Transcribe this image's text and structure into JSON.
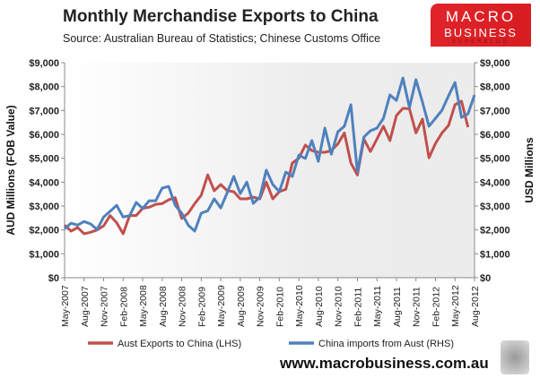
{
  "logo": {
    "line1": "MACRO",
    "line2": "BUSINESS",
    "line3": "SUPERBLOG"
  },
  "website": "www.macrobusiness.com.au",
  "chart_data": {
    "type": "line",
    "title": "Monthly Merchandise Exports to China",
    "subtitle": "Source:  Australian Bureau of Statistics; Chinese Customs Office",
    "ylabel_left": "AUD Millions (FOB Value)",
    "ylabel_right": "USD Millions",
    "ylim": [
      0,
      9000
    ],
    "yticks": [
      "$0",
      "$1,000",
      "$2,000",
      "$3,000",
      "$4,000",
      "$5,000",
      "$6,000",
      "$7,000",
      "$8,000",
      "$9,000"
    ],
    "start_month": "May-2007",
    "xtick_labels": [
      "May-2007",
      "Aug-2007",
      "Nov-2007",
      "Feb-2008",
      "May-2008",
      "Aug-2008",
      "Nov-2008",
      "Feb-2009",
      "May-2009",
      "Aug-2009",
      "Nov-2009",
      "Feb-2010",
      "May-2010",
      "Aug-2010",
      "Nov-2010",
      "Feb-2011",
      "May-2011",
      "Aug-2011",
      "Nov-2011",
      "Feb-2012",
      "May-2012",
      "Aug-2012"
    ],
    "legend_position": "bottom",
    "series": [
      {
        "name": "Aust Exports to China (LHS)",
        "color": "#c0504d",
        "values": [
          2200,
          1950,
          2100,
          1840,
          1900,
          2000,
          2170,
          2600,
          2300,
          1840,
          2600,
          2600,
          2900,
          2950,
          3070,
          3100,
          3260,
          3350,
          2480,
          2700,
          3100,
          3450,
          4300,
          3640,
          3900,
          3640,
          3600,
          3300,
          3300,
          3370,
          3300,
          4000,
          3300,
          3600,
          3700,
          4800,
          5000,
          5550,
          5320,
          5250,
          5250,
          5320,
          5600,
          6060,
          4800,
          4300,
          5800,
          5280,
          5800,
          6340,
          5740,
          6790,
          7090,
          7070,
          6060,
          6640,
          5020,
          5620,
          6060,
          6370,
          7240,
          7390,
          6300
        ]
      },
      {
        "name": "China imports from Aust (RHS)",
        "color": "#4f81bd",
        "values": [
          2050,
          2280,
          2200,
          2350,
          2250,
          2020,
          2540,
          2780,
          3030,
          2540,
          2600,
          3150,
          2900,
          3220,
          3220,
          3750,
          3820,
          3030,
          2700,
          2200,
          1950,
          2700,
          2800,
          3300,
          2920,
          3560,
          4240,
          3520,
          4000,
          3110,
          3370,
          4500,
          3900,
          3600,
          4420,
          4240,
          5130,
          4990,
          5740,
          4870,
          6260,
          5170,
          6110,
          6340,
          7240,
          4420,
          5890,
          6150,
          6260,
          6670,
          7650,
          7420,
          8360,
          7120,
          8290,
          7350,
          6340,
          6670,
          7010,
          7610,
          8170,
          6710,
          6860,
          7650
        ]
      }
    ]
  }
}
